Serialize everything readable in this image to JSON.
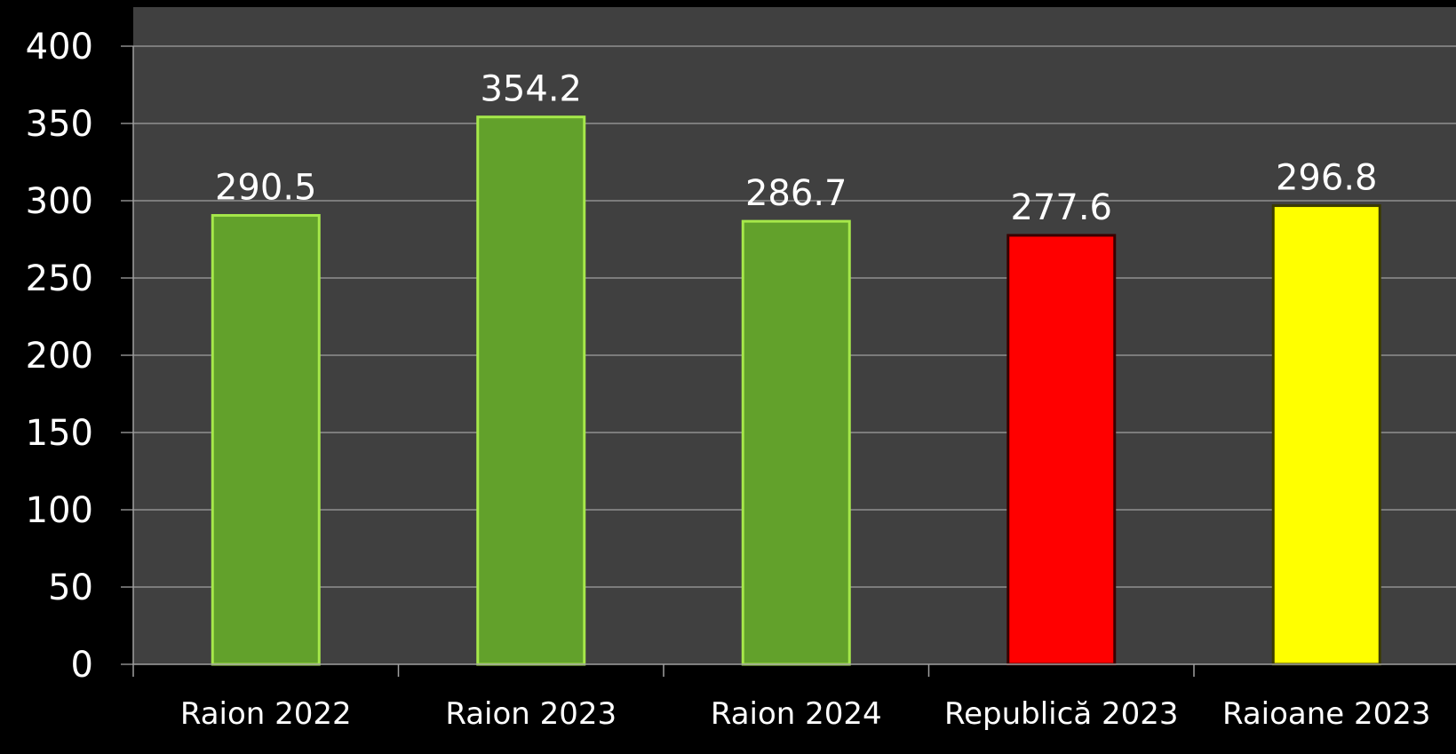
{
  "chart_data": {
    "type": "bar",
    "title": "",
    "xlabel": "",
    "ylabel": "",
    "categories": [
      "Raion 2022",
      "Raion 2023",
      "Raion 2024",
      "Republică 2023",
      "Raioane 2023"
    ],
    "values": [
      290.5,
      354.2,
      286.7,
      277.6,
      296.8
    ],
    "data_labels": [
      "290.5",
      "354.2",
      "286.7",
      "277.6",
      "296.8"
    ],
    "ylim": [
      0,
      400
    ],
    "yticks": [
      "0",
      "50",
      "100",
      "150",
      "200",
      "250",
      "300",
      "350",
      "400"
    ],
    "grid": true,
    "legend": "none",
    "bar_colors": [
      "#62a12b",
      "#62a12b",
      "#62a12b",
      "#ff0000",
      "#ffff00"
    ],
    "bar_border_colors": [
      "#a6e84a",
      "#a6e84a",
      "#a6e84a",
      "#3a0000",
      "#3a3a00"
    ],
    "plot_background": "#404040",
    "page_background": "#000000",
    "gridline_color": "#a0a0a0",
    "text_color": "#ffffff"
  }
}
